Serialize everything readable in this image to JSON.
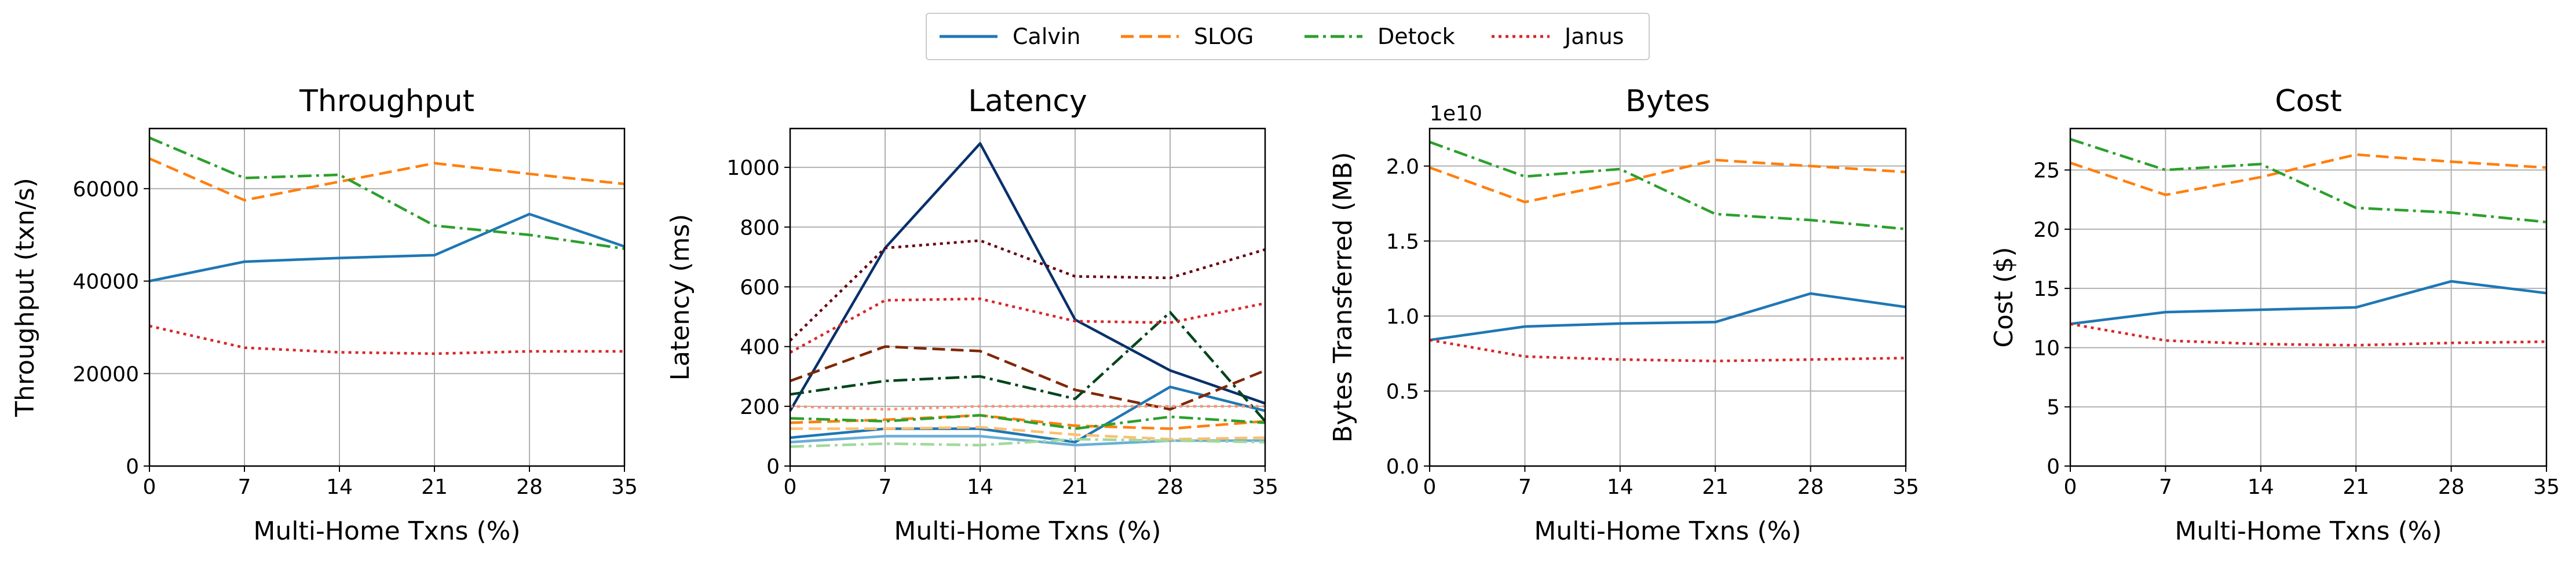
{
  "legend": [
    {
      "name": "Calvin",
      "color": "#1f77b4",
      "dash": "solid"
    },
    {
      "name": "SLOG",
      "color": "#ff7f0e",
      "dash": "dashed"
    },
    {
      "name": "Detock",
      "color": "#2ca02c",
      "dash": "dashdot"
    },
    {
      "name": "Janus",
      "color": "#d62728",
      "dash": "dotted"
    }
  ],
  "chart_data": [
    {
      "type": "line",
      "title": "Throughput",
      "xlabel": "Multi-Home Txns (%)",
      "ylabel": "Throughput (txn/s)",
      "x": [
        0,
        7,
        14,
        21,
        28,
        35
      ],
      "xlim": [
        0,
        35
      ],
      "ylim": [
        0,
        73000
      ],
      "yticks": [
        0,
        20000,
        40000,
        60000
      ],
      "ytick_labels": [
        "0",
        "20000",
        "40000",
        "60000"
      ],
      "grid": true,
      "series": [
        {
          "name": "Calvin",
          "color": "#1f77b4",
          "dash": "solid",
          "values": [
            40000,
            44200,
            45000,
            45600,
            54500,
            47500
          ]
        },
        {
          "name": "SLOG",
          "color": "#ff7f0e",
          "dash": "dashed",
          "values": [
            66500,
            57500,
            61500,
            65500,
            63200,
            61000
          ]
        },
        {
          "name": "Detock",
          "color": "#2ca02c",
          "dash": "dashdot",
          "values": [
            71000,
            62300,
            63000,
            52000,
            50000,
            47000
          ]
        },
        {
          "name": "Janus",
          "color": "#d62728",
          "dash": "dotted",
          "values": [
            30300,
            25600,
            24600,
            24300,
            24800,
            24800
          ]
        }
      ]
    },
    {
      "type": "line",
      "title": "Latency",
      "xlabel": "Multi-Home Txns (%)",
      "ylabel": "Latency (ms)",
      "x": [
        0,
        7,
        14,
        21,
        28,
        35
      ],
      "xlim": [
        0,
        35
      ],
      "ylim": [
        0,
        1130
      ],
      "yticks": [
        0,
        200,
        400,
        600,
        800,
        1000
      ],
      "ytick_labels": [
        "0",
        "200",
        "400",
        "600",
        "800",
        "1000"
      ],
      "grid": true,
      "series": [
        {
          "color": "#08306b",
          "dash": "solid",
          "values": [
            185,
            730,
            1080,
            490,
            320,
            210
          ]
        },
        {
          "color": "#1f77b4",
          "dash": "solid",
          "values": [
            95,
            125,
            125,
            80,
            265,
            185
          ]
        },
        {
          "color": "#6baed6",
          "dash": "solid",
          "values": [
            80,
            100,
            100,
            70,
            85,
            85
          ]
        },
        {
          "color": "#7f2704",
          "dash": "dashed",
          "values": [
            285,
            400,
            385,
            255,
            190,
            320
          ]
        },
        {
          "color": "#ff7f0e",
          "dash": "dashed",
          "values": [
            145,
            155,
            170,
            135,
            125,
            150
          ]
        },
        {
          "color": "#fdbf6f",
          "dash": "dashed",
          "values": [
            125,
            125,
            130,
            105,
            90,
            95
          ]
        },
        {
          "color": "#00441b",
          "dash": "dashdot",
          "values": [
            240,
            285,
            300,
            225,
            515,
            150
          ]
        },
        {
          "color": "#2ca02c",
          "dash": "dashdot",
          "values": [
            160,
            150,
            170,
            125,
            165,
            145
          ]
        },
        {
          "color": "#a1d99b",
          "dash": "dashdot",
          "values": [
            65,
            75,
            70,
            90,
            85,
            80
          ]
        },
        {
          "color": "#67000d",
          "dash": "dotted",
          "values": [
            420,
            730,
            755,
            635,
            630,
            725
          ]
        },
        {
          "color": "#d62728",
          "dash": "dotted",
          "values": [
            380,
            555,
            560,
            485,
            480,
            545
          ]
        },
        {
          "color": "#fc9272",
          "dash": "dotted",
          "values": [
            200,
            190,
            200,
            200,
            200,
            200
          ]
        }
      ]
    },
    {
      "type": "line",
      "title": "Bytes",
      "xlabel": "Multi-Home Txns (%)",
      "ylabel": "Bytes Transferred (MB)",
      "offset_label": "1e10",
      "x": [
        0,
        7,
        14,
        21,
        28,
        35
      ],
      "xlim": [
        0,
        35
      ],
      "ylim": [
        0,
        2.25
      ],
      "yticks": [
        0,
        0.5,
        1.0,
        1.5,
        2.0
      ],
      "ytick_labels": [
        "0.0",
        "0.5",
        "1.0",
        "1.5",
        "2.0"
      ],
      "grid": true,
      "series": [
        {
          "name": "Calvin",
          "color": "#1f77b4",
          "dash": "solid",
          "values": [
            0.84,
            0.93,
            0.95,
            0.96,
            1.15,
            1.06
          ]
        },
        {
          "name": "SLOG",
          "color": "#ff7f0e",
          "dash": "dashed",
          "values": [
            1.99,
            1.76,
            1.89,
            2.04,
            2.0,
            1.96
          ]
        },
        {
          "name": "Detock",
          "color": "#2ca02c",
          "dash": "dashdot",
          "values": [
            2.16,
            1.93,
            1.98,
            1.68,
            1.64,
            1.58
          ]
        },
        {
          "name": "Janus",
          "color": "#d62728",
          "dash": "dotted",
          "values": [
            0.84,
            0.73,
            0.71,
            0.7,
            0.71,
            0.72
          ]
        }
      ]
    },
    {
      "type": "line",
      "title": "Cost",
      "xlabel": "Multi-Home Txns (%)",
      "ylabel": "Cost ($)",
      "x": [
        0,
        7,
        14,
        21,
        28,
        35
      ],
      "xlim": [
        0,
        35
      ],
      "ylim": [
        0,
        28.5
      ],
      "yticks": [
        0,
        5,
        10,
        15,
        20,
        25
      ],
      "ytick_labels": [
        "0",
        "5",
        "10",
        "15",
        "20",
        "25"
      ],
      "grid": true,
      "series": [
        {
          "name": "Calvin",
          "color": "#1f77b4",
          "dash": "solid",
          "values": [
            12.0,
            13.0,
            13.2,
            13.4,
            15.6,
            14.6
          ]
        },
        {
          "name": "SLOG",
          "color": "#ff7f0e",
          "dash": "dashed",
          "values": [
            25.6,
            22.9,
            24.4,
            26.3,
            25.7,
            25.2
          ]
        },
        {
          "name": "Detock",
          "color": "#2ca02c",
          "dash": "dashdot",
          "values": [
            27.6,
            25.0,
            25.5,
            21.8,
            21.4,
            20.6
          ]
        },
        {
          "name": "Janus",
          "color": "#d62728",
          "dash": "dotted",
          "values": [
            12.0,
            10.6,
            10.3,
            10.2,
            10.4,
            10.5
          ]
        }
      ]
    }
  ]
}
